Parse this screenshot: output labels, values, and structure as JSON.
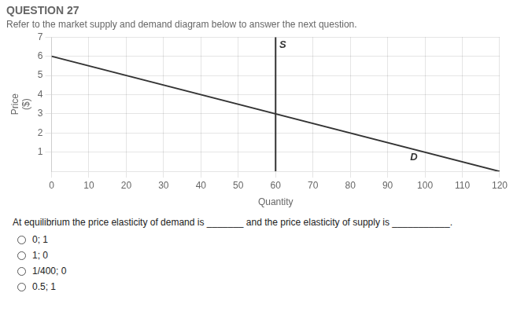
{
  "chart_data": {
    "type": "line",
    "title": "QUESTION 27",
    "subtitle": "Refer to the market supply and demand diagram below to answer the next question.",
    "x_label": "Quantity",
    "y_label": [
      "Price",
      "($)"
    ],
    "xlim": [
      0,
      120
    ],
    "xticks": [
      0,
      10,
      20,
      30,
      40,
      50,
      60,
      70,
      80,
      90,
      100,
      110,
      120
    ],
    "ylim": [
      0,
      7
    ],
    "yticks": [
      1,
      2,
      3,
      4,
      5,
      6,
      7
    ],
    "grid": true,
    "legend": false,
    "series": [
      {
        "x": [
          0,
          120
        ],
        "values": [
          6,
          0
        ],
        "color": "#333333"
      },
      {
        "x": [
          60,
          60
        ],
        "values": [
          0,
          7
        ],
        "color": "#333333"
      }
    ],
    "annotations": [
      {
        "text": "D",
        "x": 97,
        "y": 0.45
      },
      {
        "text": "S",
        "x": 61,
        "y": 6.85
      }
    ],
    "question": "At equilibrium the price elasticity of demand is _______ and the price elasticity of supply is ___________.",
    "options": [
      "0; 1",
      "1; 0",
      "1/400; 0",
      "0.5; 1"
    ]
  }
}
